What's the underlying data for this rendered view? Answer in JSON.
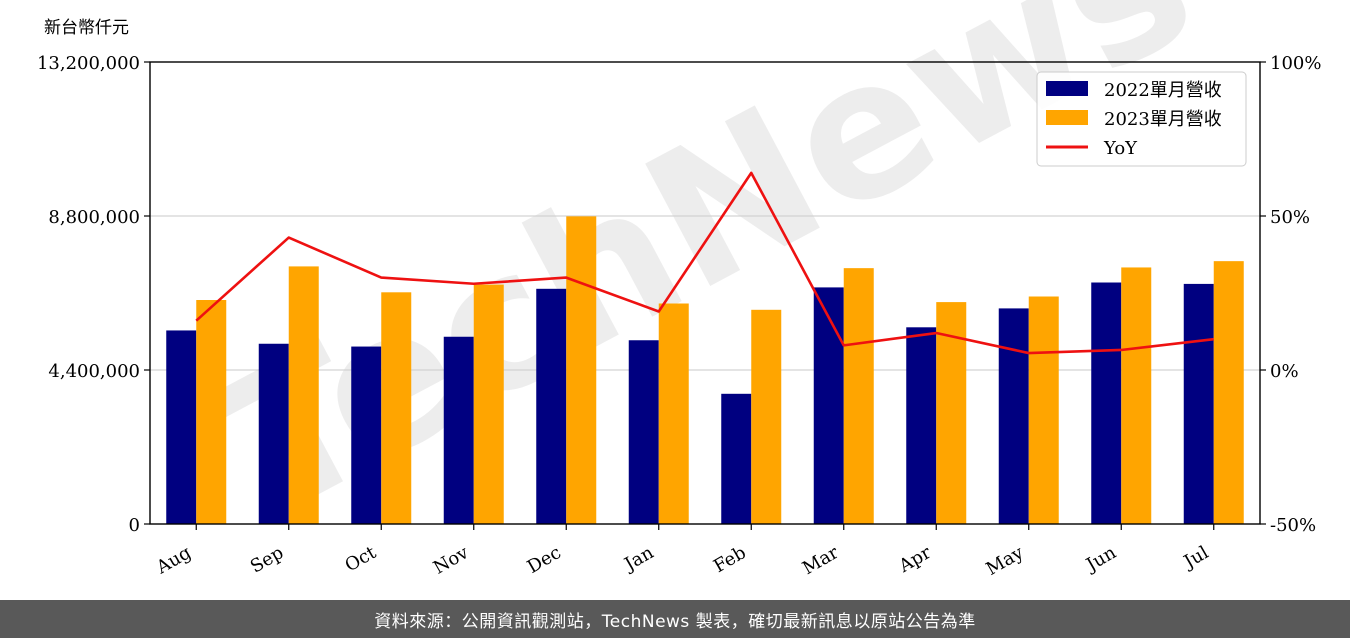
{
  "unit_label": "新台幣仟元",
  "watermark": "TechNews",
  "footer": "資料來源：公開資訊觀測站，TechNews 製表，確切最新訊息以原站公告為準",
  "colors": {
    "series2022": "#000080",
    "series2023": "#ffa500",
    "yoy": "#ee1111",
    "grid": "#d3d3d3"
  },
  "chart_data": {
    "type": "bar",
    "categories": [
      "Aug",
      "Sep",
      "Oct",
      "Nov",
      "Dec",
      "Jan",
      "Feb",
      "Mar",
      "Apr",
      "May",
      "Jun",
      "Jul"
    ],
    "series": [
      {
        "name": "2022單月營收",
        "values": [
          5530000,
          5150000,
          5070000,
          5350000,
          6720000,
          5250000,
          3720000,
          6760000,
          5620000,
          6160000,
          6900000,
          6860000
        ]
      },
      {
        "name": "2023單月營收",
        "values": [
          6400000,
          7360000,
          6620000,
          6840000,
          8790000,
          6300000,
          6120000,
          7310000,
          6340000,
          6500000,
          7330000,
          7510000
        ]
      }
    ],
    "line_series": {
      "name": "YoY",
      "axis": "right",
      "values": [
        16,
        43,
        30,
        28,
        30,
        19,
        64,
        8,
        12,
        5.5,
        6.5,
        10
      ]
    },
    "ylim": [
      0,
      13200000
    ],
    "yticks": [
      "0",
      "4,400,000",
      "8,800,000",
      "13,200,000"
    ],
    "ytick_values": [
      0,
      4400000,
      8800000,
      13200000
    ],
    "y2lim": [
      -50,
      100
    ],
    "y2ticks": [
      "-50%",
      "0%",
      "50%",
      "100%"
    ],
    "y2tick_values": [
      -50,
      0,
      50,
      100
    ],
    "grid": true,
    "legend": "top-right"
  }
}
